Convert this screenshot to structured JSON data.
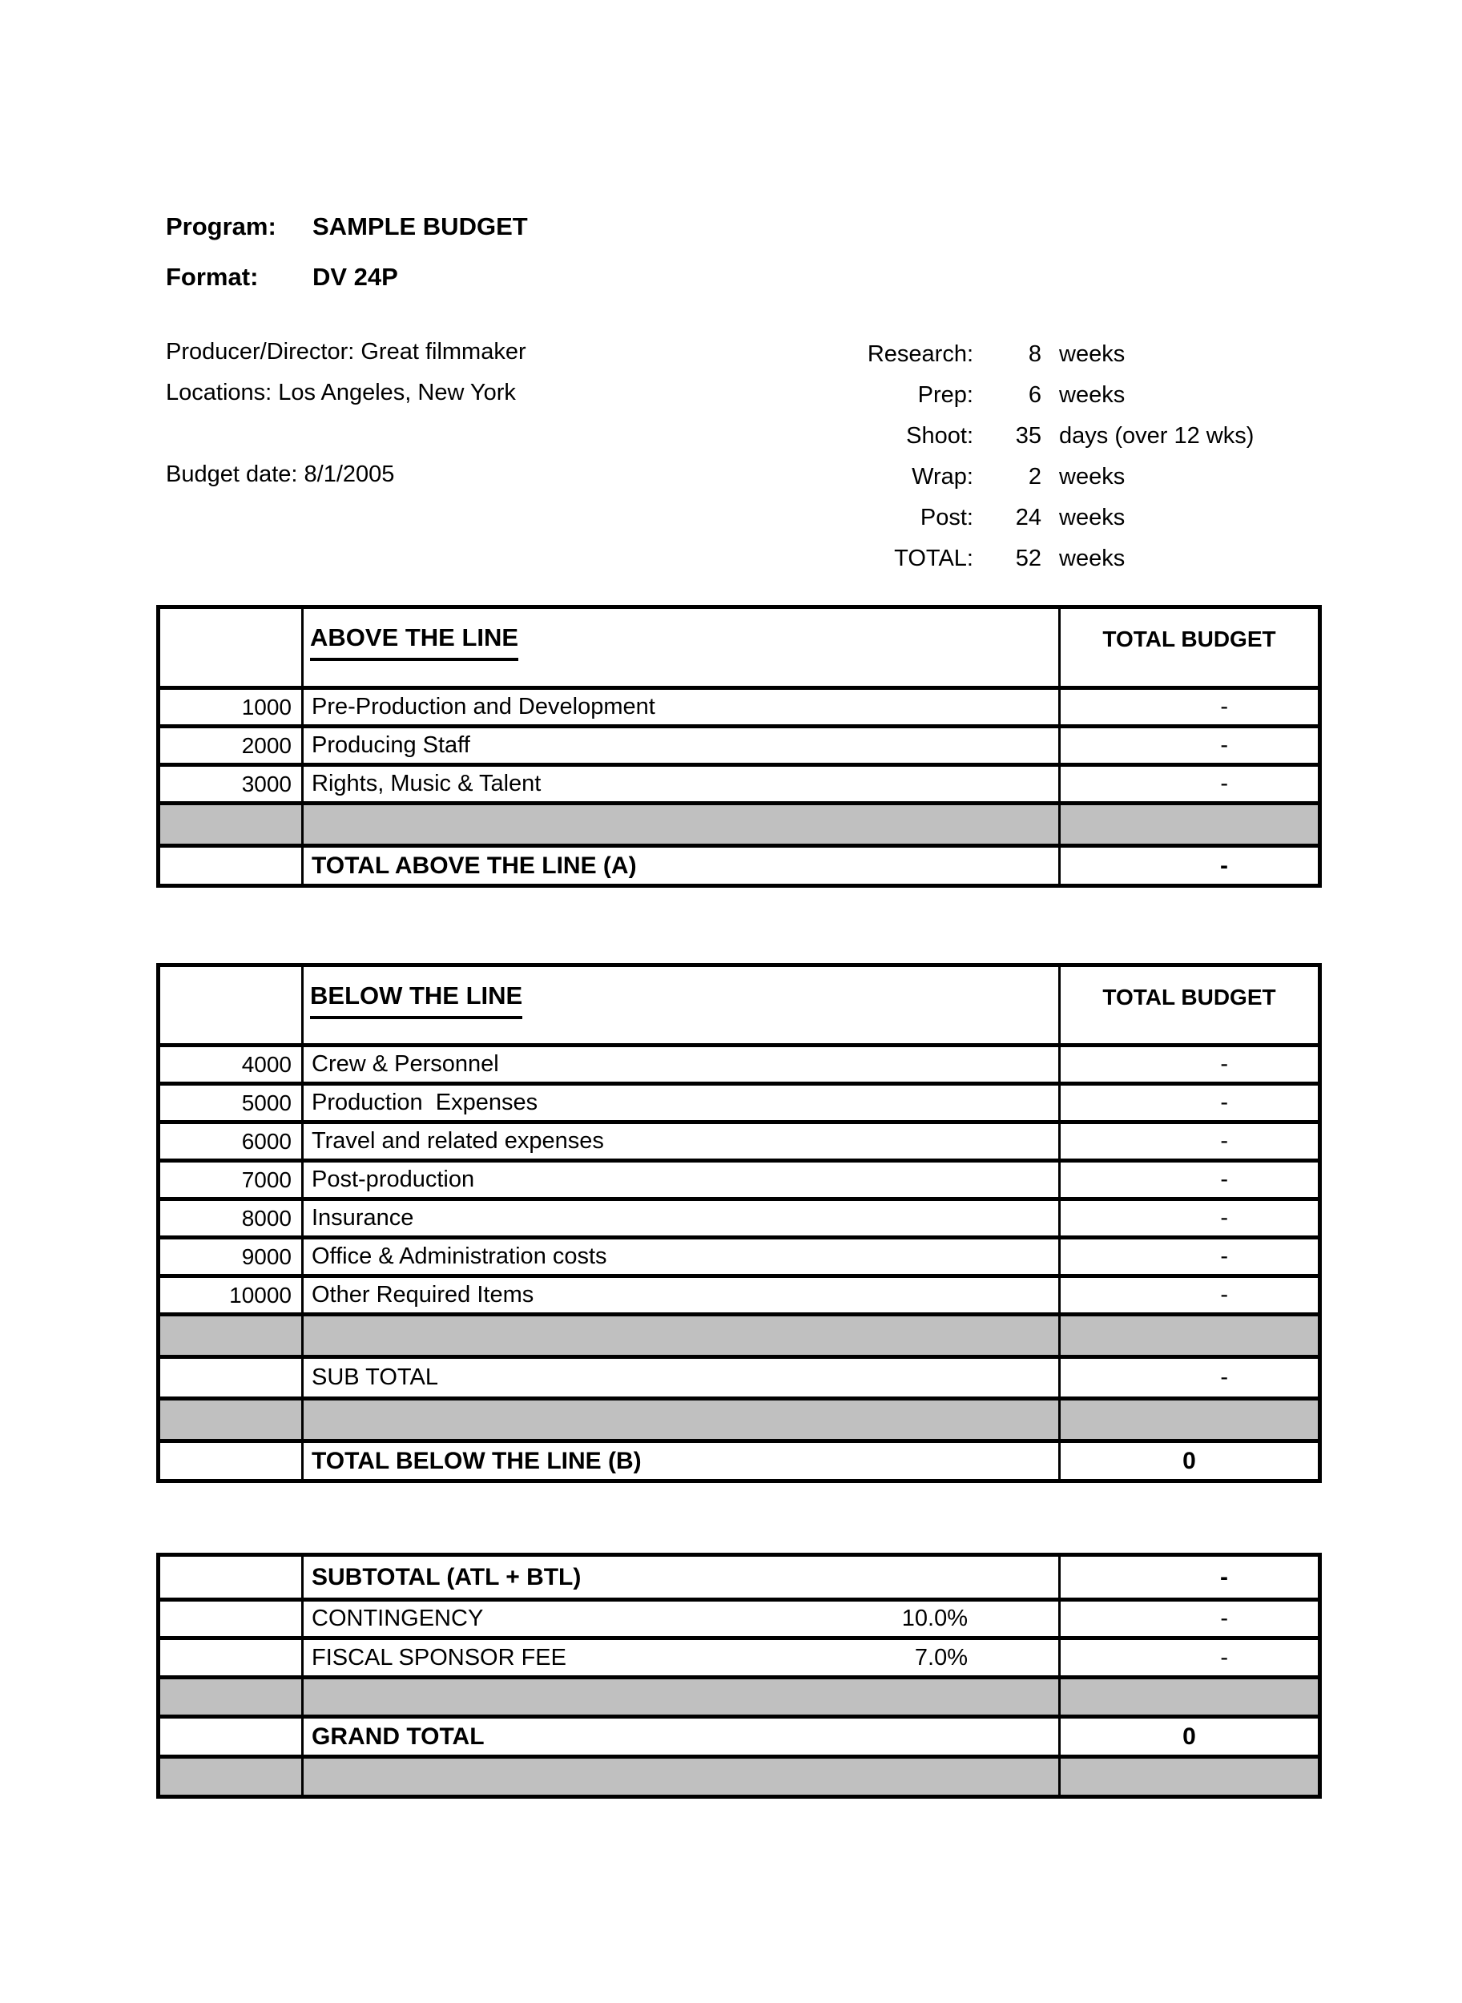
{
  "document": {
    "program_label": "Program:",
    "program_value": "SAMPLE BUDGET",
    "format_label": "Format:",
    "format_value": "DV 24P",
    "producer": "Producer/Director: Great filmmaker",
    "locations": "Locations: Los Angeles, New York",
    "budget_date": "Budget date: 8/1/2005"
  },
  "schedule": {
    "rows": [
      {
        "label": "Research:",
        "value": "8",
        "unit": "weeks"
      },
      {
        "label": "Prep:",
        "value": "6",
        "unit": "weeks"
      },
      {
        "label": "Shoot:",
        "value": "35",
        "unit": "days (over 12 wks)"
      },
      {
        "label": "Wrap:",
        "value": "2",
        "unit": "weeks"
      },
      {
        "label": "Post:",
        "value": "24",
        "unit": "weeks"
      },
      {
        "label": "TOTAL:",
        "value": "52",
        "unit": "weeks"
      }
    ]
  },
  "tables": [
    {
      "title": "ABOVE THE LINE",
      "budget_header": "TOTAL BUDGET",
      "rows": [
        {
          "code": "1000",
          "desc": "Pre-Production and Development",
          "value": "-"
        },
        {
          "code": "2000",
          "desc": "Producing Staff",
          "value": "-"
        },
        {
          "code": "3000",
          "desc": "Rights, Music & Talent",
          "value": "-"
        },
        {
          "type": "gray"
        },
        {
          "desc": "TOTAL ABOVE THE LINE (A)",
          "value": "-",
          "bold": true
        }
      ]
    },
    {
      "title": "BELOW THE LINE",
      "budget_header": "TOTAL BUDGET",
      "rows": [
        {
          "code": "4000",
          "desc": "Crew & Personnel",
          "value": "-"
        },
        {
          "code": "5000",
          "desc": "Production  Expenses",
          "value": "-"
        },
        {
          "code": "6000",
          "desc": "Travel and related expenses",
          "value": "-"
        },
        {
          "code": "7000",
          "desc": "Post-production",
          "value": "-"
        },
        {
          "code": "8000",
          "desc": "Insurance",
          "value": "-"
        },
        {
          "code": "9000",
          "desc": "Office & Administration costs",
          "value": "-"
        },
        {
          "code": "10000",
          "desc": "Other Required Items",
          "value": "-"
        },
        {
          "type": "gray"
        },
        {
          "desc": "SUB TOTAL",
          "value": "-"
        },
        {
          "type": "gray"
        },
        {
          "desc": "TOTAL BELOW THE LINE (B)",
          "value": "0",
          "bold": true
        }
      ]
    },
    {
      "title": null,
      "budget_header": null,
      "rows": [
        {
          "desc": "SUBTOTAL (ATL + BTL)",
          "value": "-",
          "bold": true
        },
        {
          "desc": "CONTINGENCY",
          "pct": "10.0%",
          "value": "-"
        },
        {
          "desc": "FISCAL SPONSOR FEE",
          "pct": "7.0%",
          "value": "-"
        },
        {
          "type": "gray"
        },
        {
          "desc": "GRAND TOTAL",
          "value": "0",
          "bold": true
        },
        {
          "type": "gray"
        }
      ]
    }
  ]
}
